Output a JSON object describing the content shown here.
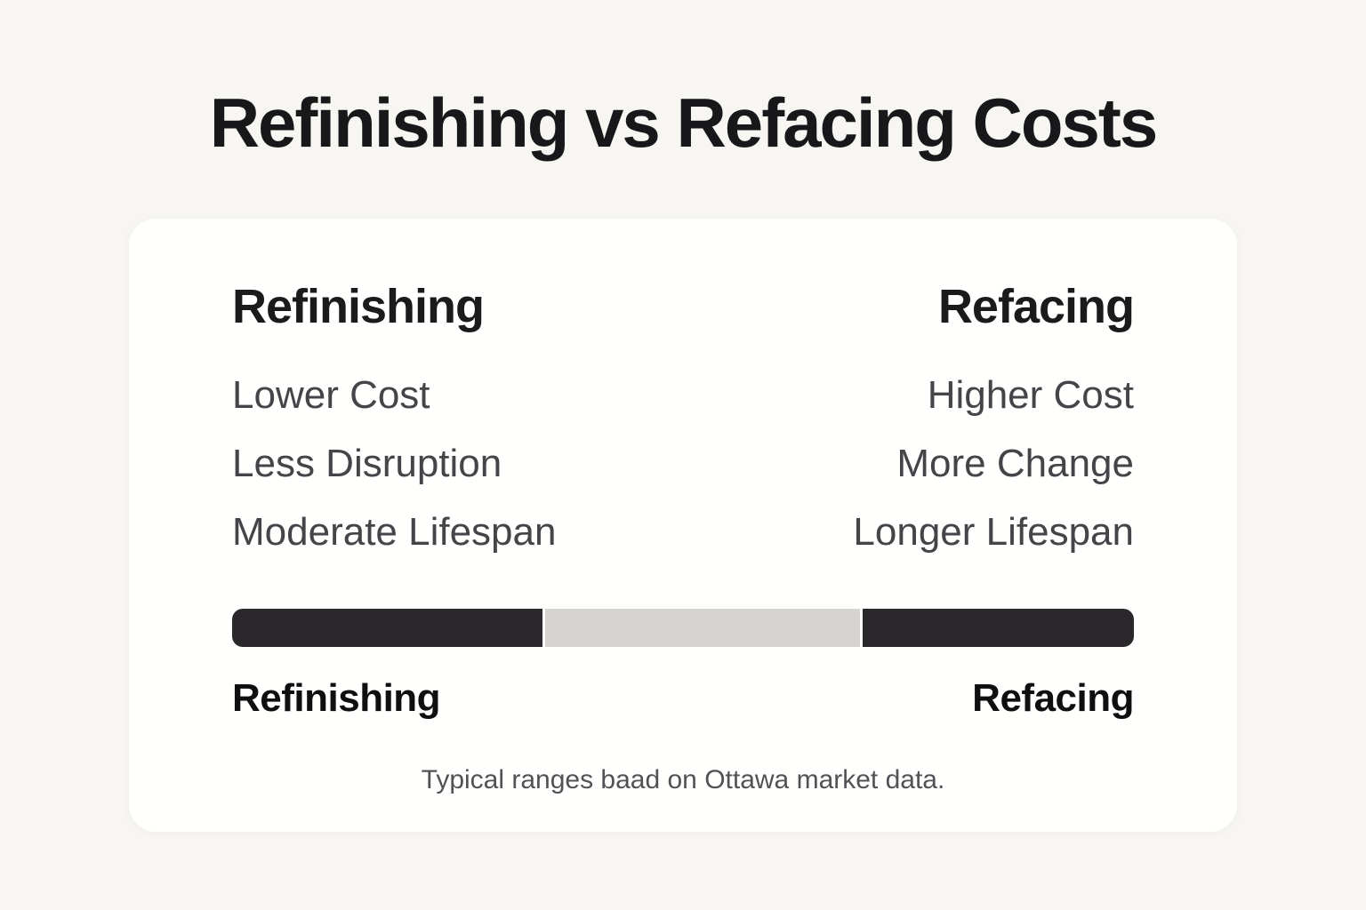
{
  "title": "Refinishing vs Refacing Costs",
  "comparison": {
    "left": {
      "heading": "Refinishing",
      "items": [
        "Lower Cost",
        "Less Disruption",
        "Moderate Lifespan"
      ]
    },
    "right": {
      "heading": "Refacing",
      "items": [
        "Higher Cost",
        "More Change",
        "Longer Lifespan"
      ]
    }
  },
  "range_bar": {
    "left_label": "Refinishing",
    "right_label": "Refacing",
    "segments": [
      {
        "name": "refinishing-range",
        "color": "#2a282b",
        "width_pct": 34.6
      },
      {
        "name": "overlap-range",
        "color": "#d6d3d0",
        "width_pct": 35.1
      },
      {
        "name": "refacing-range",
        "color": "#2a282b",
        "width_pct": 30.3
      }
    ]
  },
  "footnote": "Typical ranges baad on Ottawa market data.",
  "colors": {
    "page_background": "#f8f6f3",
    "card_background": "#fffffe",
    "heading_text": "#1b1b1d",
    "item_text": "#454549",
    "bar_dark": "#2a282b",
    "bar_light": "#d6d3d0",
    "footnote_text": "#515256"
  }
}
